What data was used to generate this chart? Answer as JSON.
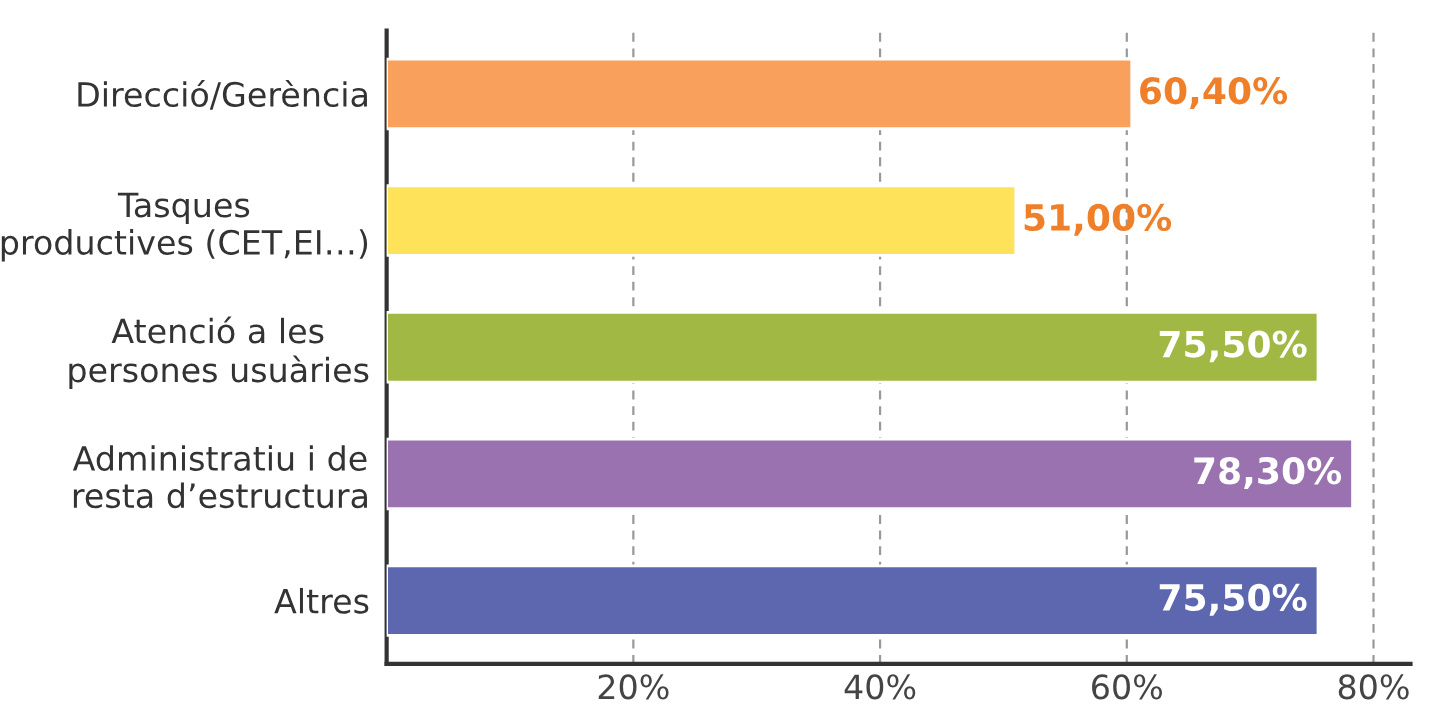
{
  "chart_data": {
    "type": "bar",
    "orientation": "horizontal",
    "categories": [
      "Direcció/Gerència",
      "Tasques\nproductives (CET,EI…)",
      "Atenció a les\npersones usuàries",
      "Administratiu i de\nresta d’estructura",
      "Altres"
    ],
    "values": [
      60.4,
      51.0,
      75.5,
      78.3,
      75.5
    ],
    "value_labels": [
      "60,40%",
      "51,00%",
      "75,50%",
      "78,30%",
      "75,50%"
    ],
    "colors": [
      "#f9a15c",
      "#fde25a",
      "#a2b844",
      "#9b72b0",
      "#5d67b0"
    ],
    "xlim": [
      0,
      83
    ],
    "xticks": [
      {
        "value": 20,
        "label": "20%"
      },
      {
        "value": 40,
        "label": "40%"
      },
      {
        "value": 60,
        "label": "60%"
      },
      {
        "value": 80,
        "label": "80%"
      }
    ],
    "grid": "x",
    "line_style": "dashed"
  }
}
